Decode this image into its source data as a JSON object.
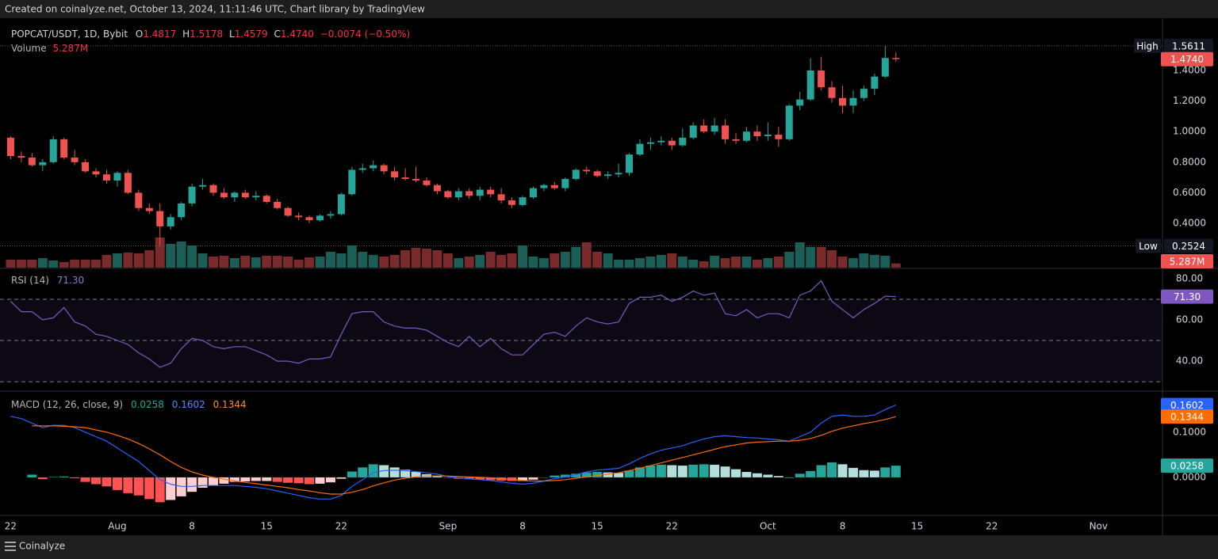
{
  "header": "Created on coinalyze.net, October 13, 2024, 11:11:46 UTC, Chart library by TradingView",
  "footer": "Coinalyze",
  "chart_data": [
    {
      "type": "candlestick",
      "legend": "POPCAT/USDT, 1D, Bybit",
      "ohlc": [
        {
          "key": "O",
          "value": "1.4817"
        },
        {
          "key": "H",
          "value": "1.5178"
        },
        {
          "key": "L",
          "value": "1.4579"
        },
        {
          "key": "C",
          "value": "1.4740"
        }
      ],
      "change": "−0.0074 (−0.50%)",
      "up_color": "#26a69a",
      "down_color": "#ef5350",
      "xlim": [
        "2024-07-21",
        "2024-11-07"
      ],
      "xticks": [
        {
          "value": "2024-07-22",
          "label": "22"
        },
        {
          "value": "2024-08-01",
          "label": "Aug"
        },
        {
          "value": "2024-08-08",
          "label": "8"
        },
        {
          "value": "2024-08-15",
          "label": "15"
        },
        {
          "value": "2024-08-22",
          "label": "22"
        },
        {
          "value": "2024-09-01",
          "label": "Sep"
        },
        {
          "value": "2024-09-08",
          "label": "8"
        },
        {
          "value": "2024-09-15",
          "label": "15"
        },
        {
          "value": "2024-09-22",
          "label": "22"
        },
        {
          "value": "2024-10-01",
          "label": "Oct"
        },
        {
          "value": "2024-10-08",
          "label": "8"
        },
        {
          "value": "2024-10-15",
          "label": "15"
        },
        {
          "value": "2024-10-22",
          "label": "22"
        },
        {
          "value": "2024-11-01",
          "label": "Nov"
        }
      ],
      "ylim": [
        0.11,
        1.716
      ],
      "yticks": [
        {
          "value": 0.4,
          "label": "0.4000"
        },
        {
          "value": 0.6,
          "label": "0.6000"
        },
        {
          "value": 0.8,
          "label": "0.8000"
        },
        {
          "value": 1.0,
          "label": "1.0000"
        },
        {
          "value": 1.2,
          "label": "1.2000"
        },
        {
          "value": 1.4,
          "label": "1.4000"
        }
      ],
      "x": [
        "2024-07-22",
        "2024-07-23",
        "2024-07-24",
        "2024-07-25",
        "2024-07-26",
        "2024-07-27",
        "2024-07-28",
        "2024-07-29",
        "2024-07-30",
        "2024-07-31",
        "2024-08-01",
        "2024-08-02",
        "2024-08-03",
        "2024-08-04",
        "2024-08-05",
        "2024-08-06",
        "2024-08-07",
        "2024-08-08",
        "2024-08-09",
        "2024-08-10",
        "2024-08-11",
        "2024-08-12",
        "2024-08-13",
        "2024-08-14",
        "2024-08-15",
        "2024-08-16",
        "2024-08-17",
        "2024-08-18",
        "2024-08-19",
        "2024-08-20",
        "2024-08-21",
        "2024-08-22",
        "2024-08-23",
        "2024-08-24",
        "2024-08-25",
        "2024-08-26",
        "2024-08-27",
        "2024-08-28",
        "2024-08-29",
        "2024-08-30",
        "2024-08-31",
        "2024-09-01",
        "2024-09-02",
        "2024-09-03",
        "2024-09-04",
        "2024-09-05",
        "2024-09-06",
        "2024-09-07",
        "2024-09-08",
        "2024-09-09",
        "2024-09-10",
        "2024-09-11",
        "2024-09-12",
        "2024-09-13",
        "2024-09-14",
        "2024-09-15",
        "2024-09-16",
        "2024-09-17",
        "2024-09-18",
        "2024-09-19",
        "2024-09-20",
        "2024-09-21",
        "2024-09-22",
        "2024-09-23",
        "2024-09-24",
        "2024-09-25",
        "2024-09-26",
        "2024-09-27",
        "2024-09-28",
        "2024-09-29",
        "2024-09-30",
        "2024-10-01",
        "2024-10-02",
        "2024-10-03",
        "2024-10-04",
        "2024-10-05",
        "2024-10-06",
        "2024-10-07",
        "2024-10-08",
        "2024-10-09",
        "2024-10-10",
        "2024-10-11",
        "2024-10-12",
        "2024-10-13"
      ],
      "open": [
        0.96,
        0.84,
        0.83,
        0.78,
        0.8,
        0.95,
        0.83,
        0.8,
        0.74,
        0.72,
        0.68,
        0.73,
        0.6,
        0.5,
        0.48,
        0.38,
        0.44,
        0.53,
        0.64,
        0.65,
        0.6,
        0.57,
        0.6,
        0.57,
        0.58,
        0.54,
        0.5,
        0.45,
        0.44,
        0.42,
        0.45,
        0.46,
        0.59,
        0.75,
        0.76,
        0.78,
        0.74,
        0.7,
        0.69,
        0.68,
        0.65,
        0.61,
        0.57,
        0.61,
        0.58,
        0.62,
        0.59,
        0.55,
        0.52,
        0.57,
        0.63,
        0.65,
        0.63,
        0.69,
        0.75,
        0.74,
        0.71,
        0.72,
        0.73,
        0.85,
        0.92,
        0.93,
        0.94,
        0.91,
        0.96,
        1.04,
        1.0,
        1.04,
        0.95,
        0.94,
        1.0,
        0.97,
        0.98,
        0.95,
        1.17,
        1.21,
        1.4,
        1.29,
        1.22,
        1.17,
        1.22,
        1.28,
        1.36,
        1.4817
      ],
      "high": [
        0.97,
        0.87,
        0.86,
        0.82,
        0.97,
        0.96,
        0.88,
        0.82,
        0.76,
        0.75,
        0.74,
        0.75,
        0.62,
        0.53,
        0.53,
        0.46,
        0.54,
        0.66,
        0.69,
        0.66,
        0.63,
        0.61,
        0.62,
        0.61,
        0.59,
        0.56,
        0.51,
        0.47,
        0.45,
        0.46,
        0.48,
        0.6,
        0.77,
        0.79,
        0.81,
        0.79,
        0.77,
        0.76,
        0.77,
        0.7,
        0.66,
        0.62,
        0.63,
        0.63,
        0.64,
        0.64,
        0.63,
        0.57,
        0.58,
        0.64,
        0.66,
        0.67,
        0.7,
        0.76,
        0.77,
        0.75,
        0.74,
        0.79,
        0.86,
        0.95,
        0.96,
        0.97,
        0.96,
        1.02,
        1.06,
        1.08,
        1.09,
        1.08,
        0.99,
        1.03,
        1.04,
        1.06,
        1.03,
        1.18,
        1.26,
        1.48,
        1.49,
        1.33,
        1.3,
        1.27,
        1.3,
        1.38,
        1.5611,
        1.5178
      ],
      "low": [
        0.82,
        0.8,
        0.77,
        0.74,
        0.79,
        0.82,
        0.78,
        0.73,
        0.7,
        0.66,
        0.64,
        0.59,
        0.48,
        0.46,
        0.2524,
        0.36,
        0.42,
        0.51,
        0.62,
        0.58,
        0.56,
        0.54,
        0.56,
        0.55,
        0.53,
        0.49,
        0.44,
        0.42,
        0.4,
        0.41,
        0.43,
        0.45,
        0.58,
        0.73,
        0.74,
        0.72,
        0.68,
        0.68,
        0.67,
        0.64,
        0.59,
        0.56,
        0.55,
        0.56,
        0.55,
        0.57,
        0.53,
        0.5,
        0.51,
        0.56,
        0.61,
        0.62,
        0.61,
        0.68,
        0.72,
        0.7,
        0.69,
        0.7,
        0.71,
        0.84,
        0.88,
        0.91,
        0.88,
        0.9,
        0.95,
        0.99,
        0.98,
        0.92,
        0.92,
        0.93,
        0.94,
        0.94,
        0.9,
        0.94,
        1.14,
        1.2,
        1.27,
        1.19,
        1.12,
        1.12,
        1.2,
        1.24,
        1.35,
        1.4579
      ],
      "close": [
        0.84,
        0.83,
        0.78,
        0.8,
        0.95,
        0.83,
        0.8,
        0.74,
        0.72,
        0.68,
        0.73,
        0.6,
        0.5,
        0.48,
        0.38,
        0.44,
        0.53,
        0.64,
        0.65,
        0.6,
        0.57,
        0.6,
        0.57,
        0.58,
        0.54,
        0.5,
        0.45,
        0.44,
        0.42,
        0.45,
        0.46,
        0.59,
        0.75,
        0.76,
        0.78,
        0.74,
        0.7,
        0.69,
        0.68,
        0.65,
        0.61,
        0.57,
        0.61,
        0.58,
        0.62,
        0.59,
        0.55,
        0.52,
        0.57,
        0.63,
        0.65,
        0.63,
        0.69,
        0.75,
        0.74,
        0.71,
        0.72,
        0.73,
        0.85,
        0.92,
        0.93,
        0.94,
        0.91,
        0.96,
        1.04,
        1.0,
        1.04,
        0.95,
        0.94,
        1.0,
        0.97,
        0.98,
        0.95,
        1.17,
        1.21,
        1.4,
        1.29,
        1.22,
        1.17,
        1.22,
        1.28,
        1.36,
        1.4817,
        1.474
      ],
      "last_label": "1.4740",
      "high_mark": {
        "label": "High",
        "value": 1.5611
      },
      "low_mark": {
        "label": "Low",
        "value": 0.2524
      },
      "volume": {
        "name": "Volume",
        "up_color": "#1a5e57",
        "down_color": "#7a2a2b",
        "last_label": "5.287M",
        "values": [
          10,
          10,
          10,
          12,
          9,
          7,
          10,
          10,
          10,
          16,
          18,
          19,
          18,
          22,
          38,
          30,
          33,
          28,
          18,
          14,
          15,
          12,
          15,
          13,
          15,
          15,
          14,
          10,
          13,
          14,
          20,
          18,
          28,
          20,
          16,
          14,
          16,
          22,
          25,
          24,
          22,
          18,
          12,
          14,
          16,
          20,
          16,
          18,
          28,
          14,
          12,
          18,
          20,
          26,
          32,
          20,
          18,
          10,
          10,
          12,
          14,
          16,
          18,
          14,
          10,
          8,
          15,
          12,
          14,
          14,
          10,
          12,
          14,
          20,
          32,
          26,
          26,
          22,
          14,
          12,
          18,
          16,
          15,
          5.287
        ]
      }
    },
    {
      "type": "rsi",
      "title": "RSI (14)",
      "color": "#7e57c2",
      "last_label": "71.30",
      "ylim": [
        25.8,
        84.6
      ],
      "yticks": [
        {
          "value": 40,
          "label": "40.00"
        },
        {
          "value": 60,
          "label": "60.00"
        },
        {
          "value": 80,
          "label": "80.00"
        }
      ],
      "levels": [
        70,
        50,
        30
      ],
      "values": [
        69,
        64,
        64,
        60,
        61,
        66,
        59,
        57,
        53,
        52,
        50,
        48,
        44,
        41,
        37,
        39,
        46,
        51,
        50,
        47,
        46,
        47,
        47,
        45,
        43,
        40,
        40,
        39,
        41,
        41,
        42,
        53,
        63,
        64,
        64,
        59,
        57,
        56,
        56,
        55,
        52,
        49,
        47,
        52,
        47,
        51,
        46,
        43,
        43,
        48,
        53,
        54,
        52,
        57,
        61,
        59,
        58,
        59,
        68,
        71,
        71,
        72,
        69,
        71,
        74,
        72,
        73,
        63,
        62,
        65,
        61,
        63,
        63,
        61,
        72,
        74,
        79,
        69,
        65,
        61,
        65,
        68,
        71.5,
        71.3
      ]
    },
    {
      "type": "macd",
      "title": "MACD (12, 26, close, 9)",
      "ylim": [
        -0.0825,
        0.189
      ],
      "yticks": [
        {
          "value": 0,
          "label": "0.0000"
        },
        {
          "value": 0.1,
          "label": "0.1000"
        }
      ],
      "histogram": {
        "colors": [
          "#26a69a",
          "#b2dfdb",
          "#ff5252",
          "#ffcdd2"
        ],
        "last_label": "0.0258",
        "values": [
          null,
          null,
          0.006,
          -0.004,
          0.001,
          0.002,
          -0.002,
          -0.01,
          -0.015,
          -0.02,
          -0.028,
          -0.035,
          -0.04,
          -0.048,
          -0.055,
          -0.05,
          -0.042,
          -0.032,
          -0.023,
          -0.018,
          -0.014,
          -0.01,
          -0.009,
          -0.008,
          -0.008,
          -0.01,
          -0.012,
          -0.013,
          -0.015,
          -0.014,
          -0.011,
          -0.003,
          0.013,
          0.022,
          0.029,
          0.027,
          0.022,
          0.017,
          0.012,
          0.007,
          0.004,
          -0.001,
          -0.003,
          -0.004,
          -0.005,
          -0.006,
          -0.007,
          -0.008,
          -0.008,
          -0.005,
          0.0,
          0.004,
          0.006,
          0.008,
          0.011,
          0.012,
          0.011,
          0.01,
          0.015,
          0.022,
          0.026,
          0.028,
          0.027,
          0.026,
          0.028,
          0.029,
          0.028,
          0.024,
          0.018,
          0.012,
          0.009,
          0.006,
          0.003,
          0.0,
          0.008,
          0.014,
          0.027,
          0.033,
          0.029,
          0.021,
          0.016,
          0.015,
          0.022,
          0.0258
        ]
      },
      "macd": {
        "color": "#2962ff",
        "last_label": "0.1602",
        "values": [
          0.135,
          0.13,
          0.12,
          0.11,
          0.115,
          0.115,
          0.11,
          0.1,
          0.09,
          0.08,
          0.065,
          0.05,
          0.035,
          0.015,
          -0.005,
          -0.015,
          -0.02,
          -0.02,
          -0.018,
          -0.018,
          -0.018,
          -0.018,
          -0.02,
          -0.022,
          -0.025,
          -0.03,
          -0.035,
          -0.04,
          -0.045,
          -0.048,
          -0.048,
          -0.04,
          -0.02,
          -0.005,
          0.01,
          0.015,
          0.016,
          0.015,
          0.013,
          0.01,
          0.007,
          0.002,
          -0.001,
          -0.003,
          -0.005,
          -0.007,
          -0.01,
          -0.013,
          -0.015,
          -0.013,
          -0.008,
          -0.003,
          0.001,
          0.006,
          0.012,
          0.016,
          0.018,
          0.02,
          0.03,
          0.042,
          0.052,
          0.06,
          0.065,
          0.07,
          0.078,
          0.085,
          0.09,
          0.092,
          0.09,
          0.088,
          0.087,
          0.085,
          0.083,
          0.08,
          0.09,
          0.1,
          0.12,
          0.135,
          0.138,
          0.135,
          0.135,
          0.138,
          0.15,
          0.1602
        ]
      },
      "signal": {
        "color": "#ff6d00",
        "last_label": "0.1344",
        "values": [
          null,
          null,
          0.114,
          0.114,
          0.114,
          0.113,
          0.112,
          0.11,
          0.105,
          0.1,
          0.093,
          0.085,
          0.075,
          0.063,
          0.05,
          0.035,
          0.022,
          0.012,
          0.005,
          0.0,
          -0.004,
          -0.008,
          -0.011,
          -0.014,
          -0.017,
          -0.02,
          -0.023,
          -0.027,
          -0.03,
          -0.034,
          -0.037,
          -0.037,
          -0.033,
          -0.027,
          -0.019,
          -0.012,
          -0.006,
          -0.002,
          0.001,
          0.003,
          0.003,
          0.003,
          0.002,
          0.001,
          0.0,
          -0.001,
          -0.003,
          -0.005,
          -0.007,
          -0.008,
          -0.008,
          -0.007,
          -0.005,
          -0.002,
          0.001,
          0.004,
          0.007,
          0.01,
          0.015,
          0.02,
          0.026,
          0.032,
          0.038,
          0.044,
          0.05,
          0.056,
          0.062,
          0.068,
          0.072,
          0.076,
          0.078,
          0.079,
          0.08,
          0.08,
          0.082,
          0.086,
          0.093,
          0.102,
          0.109,
          0.114,
          0.119,
          0.123,
          0.128,
          0.1344
        ]
      }
    }
  ]
}
